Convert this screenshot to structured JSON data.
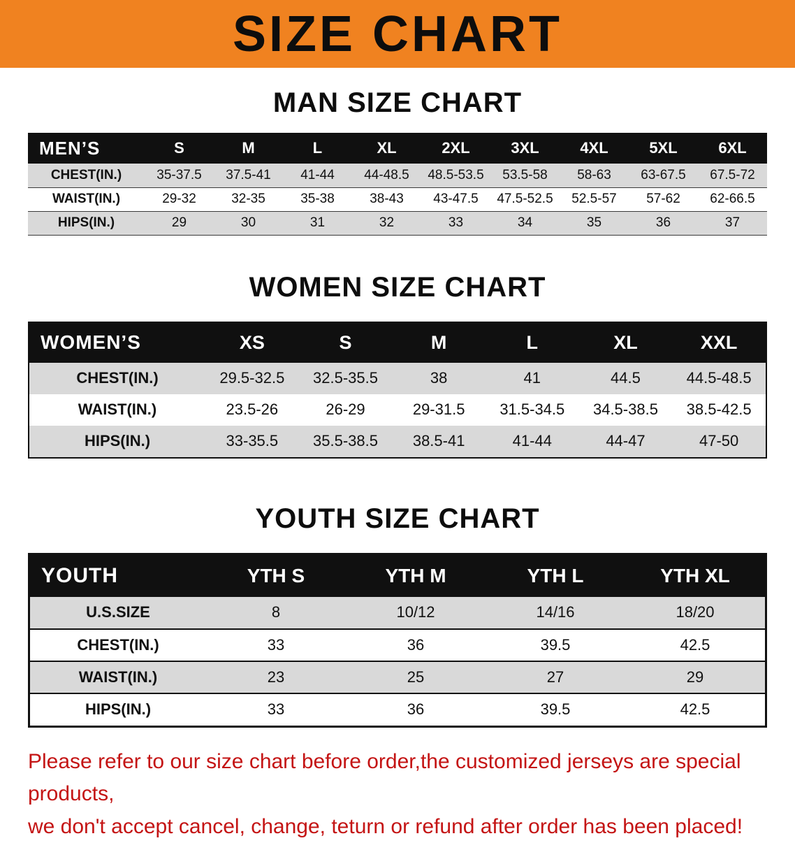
{
  "banner": {
    "title": "SIZE CHART",
    "bg_color": "#f08220"
  },
  "colors": {
    "banner_orange": "#f08220",
    "header_black": "#101010",
    "row_gray": "#d9d9d9",
    "disclaimer_red": "#c41414"
  },
  "sections": [
    {
      "id": "men",
      "heading": "MAN SIZE CHART",
      "table": {
        "corner_label": "MEN’S",
        "columns": [
          "S",
          "M",
          "L",
          "XL",
          "2XL",
          "3XL",
          "4XL",
          "5XL",
          "6XL"
        ],
        "rows": [
          {
            "label": "CHEST(IN.)",
            "cells": [
              "35-37.5",
              "37.5-41",
              "41-44",
              "44-48.5",
              "48.5-53.5",
              "53.5-58",
              "58-63",
              "63-67.5",
              "67.5-72"
            ]
          },
          {
            "label": "WAIST(IN.)",
            "cells": [
              "29-32",
              "32-35",
              "35-38",
              "38-43",
              "43-47.5",
              "47.5-52.5",
              "52.5-57",
              "57-62",
              "62-66.5"
            ]
          },
          {
            "label": "HIPS(IN.)",
            "cells": [
              "29",
              "30",
              "31",
              "32",
              "33",
              "34",
              "35",
              "36",
              "37"
            ]
          }
        ]
      }
    },
    {
      "id": "women",
      "heading": "WOMEN SIZE CHART",
      "table": {
        "corner_label": "WOMEN’S",
        "columns": [
          "XS",
          "S",
          "M",
          "L",
          "XL",
          "XXL"
        ],
        "rows": [
          {
            "label": "CHEST(IN.)",
            "cells": [
              "29.5-32.5",
              "32.5-35.5",
              "38",
              "41",
              "44.5",
              "44.5-48.5"
            ]
          },
          {
            "label": "WAIST(IN.)",
            "cells": [
              "23.5-26",
              "26-29",
              "29-31.5",
              "31.5-34.5",
              "34.5-38.5",
              "38.5-42.5"
            ]
          },
          {
            "label": "HIPS(IN.)",
            "cells": [
              "33-35.5",
              "35.5-38.5",
              "38.5-41",
              "41-44",
              "44-47",
              "47-50"
            ]
          }
        ]
      }
    },
    {
      "id": "youth",
      "heading": "YOUTH SIZE CHART",
      "table": {
        "corner_label": "YOUTH",
        "columns": [
          "YTH S",
          "YTH M",
          "YTH L",
          "YTH XL"
        ],
        "rows": [
          {
            "label": "U.S.SIZE",
            "cells": [
              "8",
              "10/12",
              "14/16",
              "18/20"
            ]
          },
          {
            "label": "CHEST(IN.)",
            "cells": [
              "33",
              "36",
              "39.5",
              "42.5"
            ]
          },
          {
            "label": "WAIST(IN.)",
            "cells": [
              "23",
              "25",
              "27",
              "29"
            ]
          },
          {
            "label": "HIPS(IN.)",
            "cells": [
              "33",
              "36",
              "39.5",
              "42.5"
            ]
          }
        ]
      }
    }
  ],
  "footer": {
    "line1": "Please refer to our size chart before order,the customized jerseys are special products,",
    "line2": "we don't accept cancel, change, teturn or refund after order has been placed!"
  }
}
